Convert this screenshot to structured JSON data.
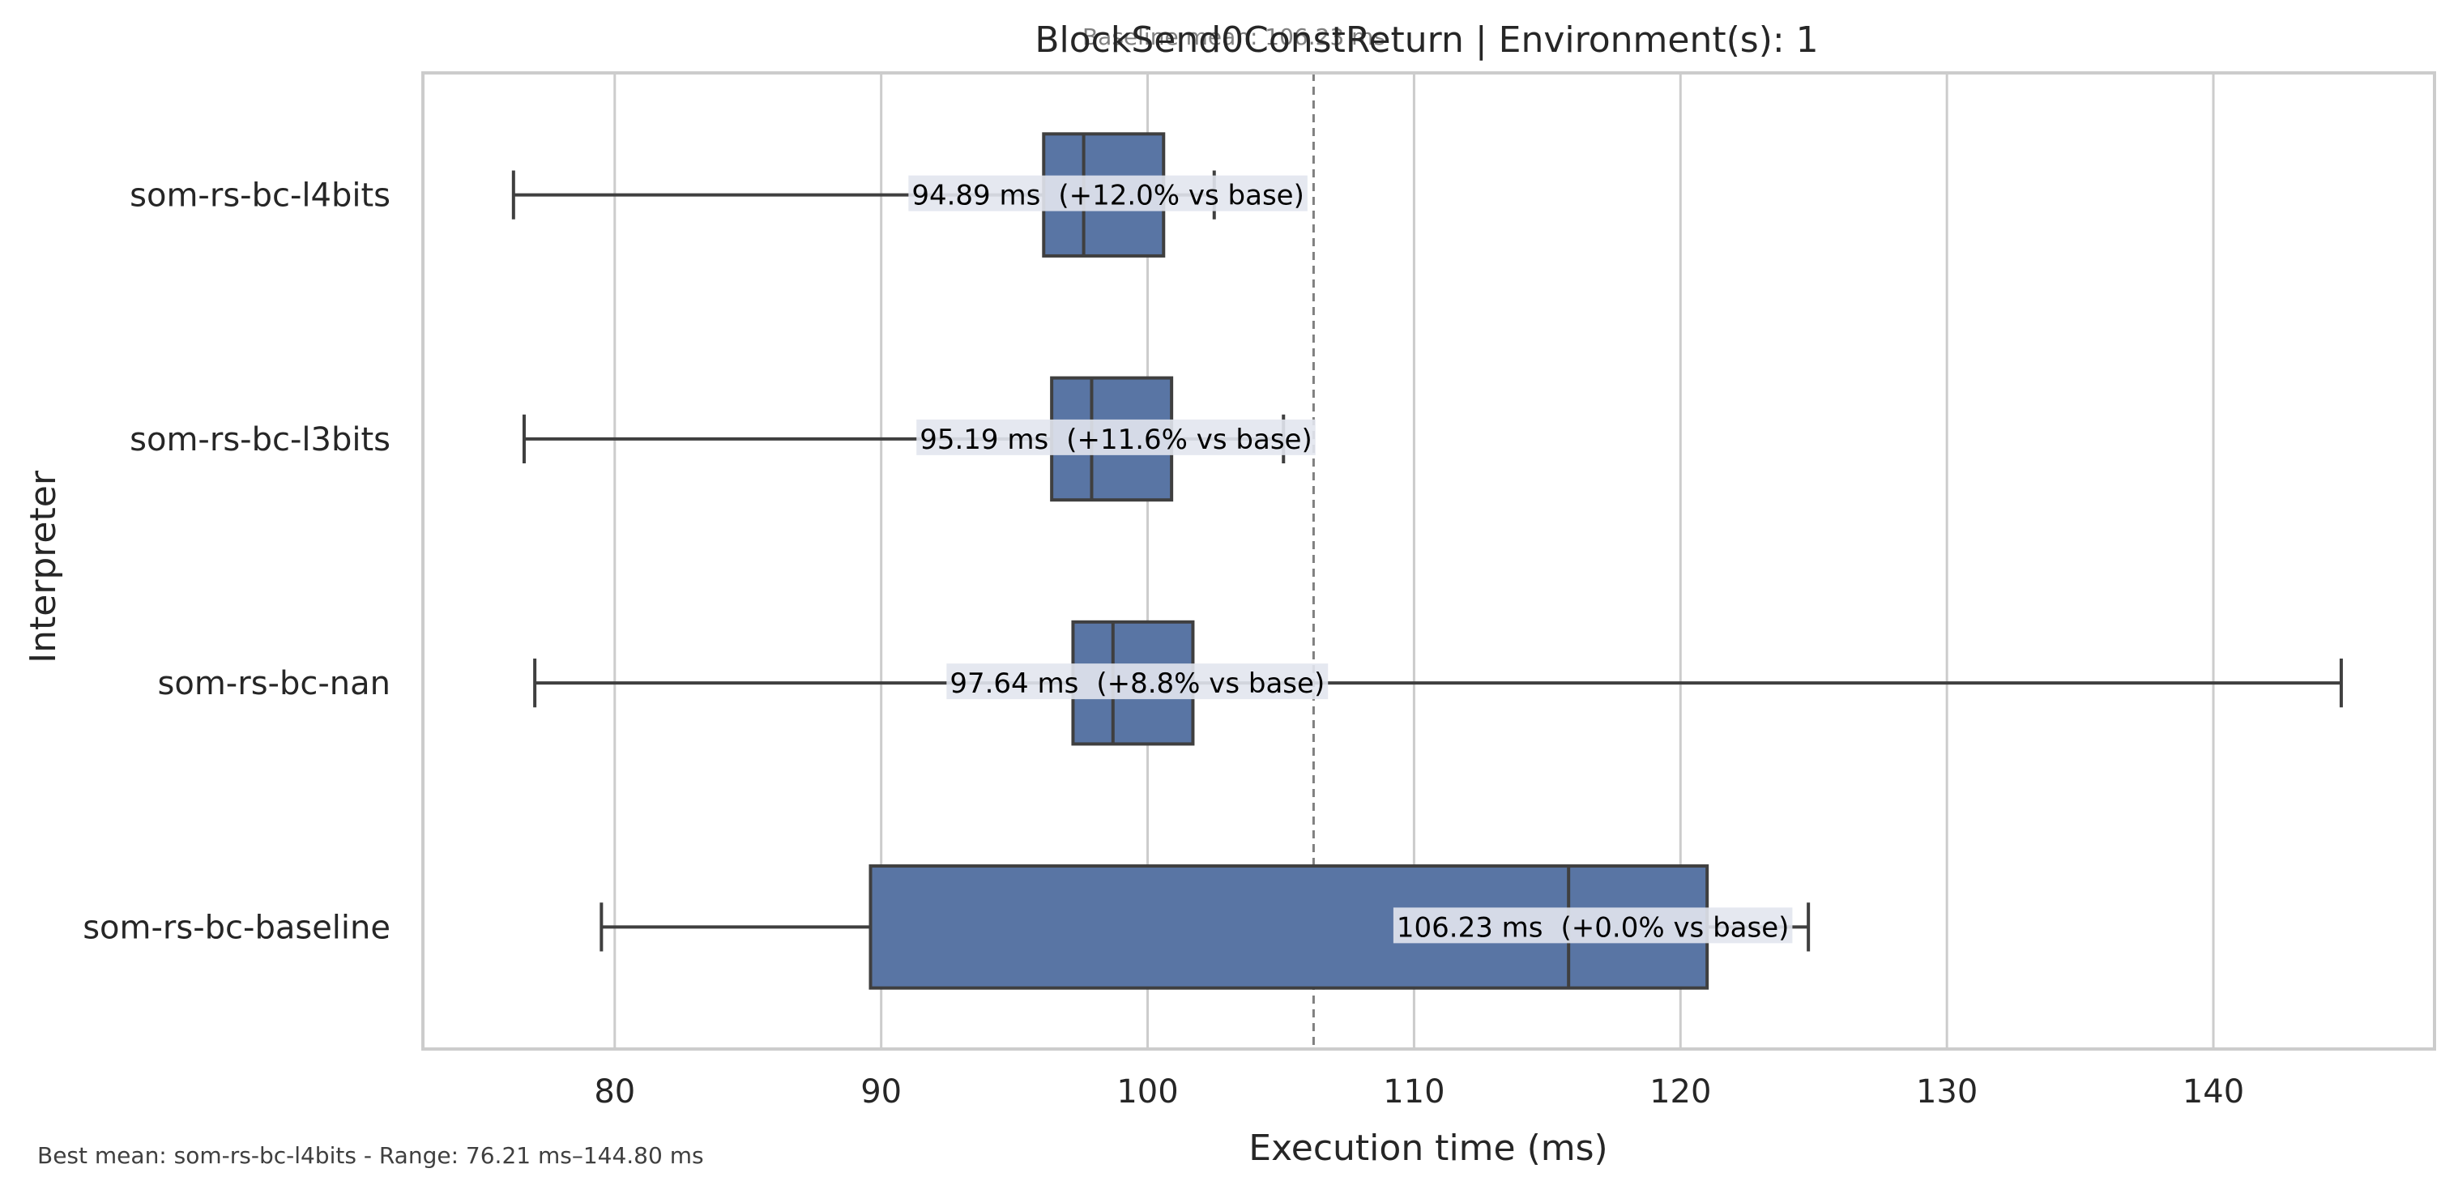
{
  "chart_data": {
    "type": "box",
    "orientation": "horizontal",
    "title": "BlockSend0ConstReturn | Environment(s): 1",
    "subtitle": "Baseline mean: 106.23 ms",
    "xlabel": "Execution time (ms)",
    "ylabel": "Interpreter",
    "xlim": [
      72.8,
      148.3
    ],
    "xticks": [
      80,
      90,
      100,
      110,
      120,
      130,
      140
    ],
    "grid": "vertical",
    "baseline_mean": 106.23,
    "categories": [
      "som-rs-bc-l4bits",
      "som-rs-bc-l3bits",
      "som-rs-bc-nan",
      "som-rs-bc-baseline"
    ],
    "series": [
      {
        "whisker_low": 76.2,
        "q1": 96.1,
        "median": 97.6,
        "q3": 100.6,
        "whisker_high": 102.5,
        "mean_label": "94.89 ms",
        "pct_label": "(+12.0% vs base)"
      },
      {
        "whisker_low": 76.6,
        "q1": 96.4,
        "median": 97.9,
        "q3": 100.9,
        "whisker_high": 105.1,
        "mean_label": "95.19 ms",
        "pct_label": "(+11.6% vs base)"
      },
      {
        "whisker_low": 77.0,
        "q1": 97.2,
        "median": 98.7,
        "q3": 101.7,
        "whisker_high": 144.8,
        "mean_label": "97.64 ms",
        "pct_label": "(+8.8% vs base)"
      },
      {
        "whisker_low": 79.5,
        "q1": 89.6,
        "median": 115.8,
        "q3": 121.0,
        "whisker_high": 124.8,
        "mean_label": "106.23 ms",
        "pct_label": "(+0.0% vs base)"
      }
    ],
    "colors": {
      "box_fill": "#5975a4",
      "box_edge": "#3f3f3f",
      "grid": "#cccccc",
      "baseline_line": "#808080",
      "label_bg": "#e2e6ee"
    }
  },
  "footer": "Best mean: som-rs-bc-l4bits - Range: 76.21 ms–144.80 ms"
}
